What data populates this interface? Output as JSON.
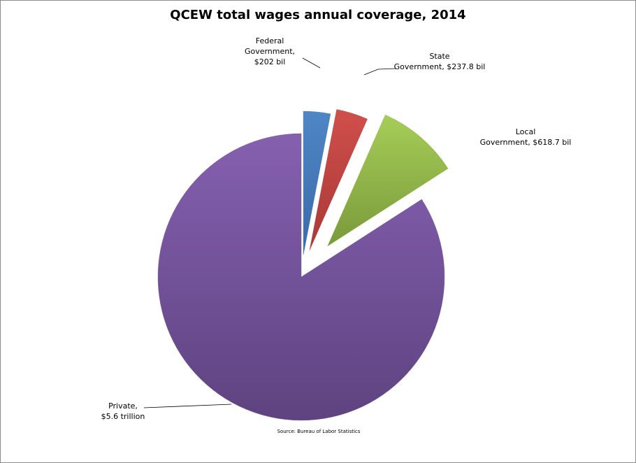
{
  "chart_data": {
    "type": "pie",
    "title": "QCEW total wages annual coverage, 2014",
    "source": "Source: Bureau of Labor Statistics",
    "slices": [
      {
        "label_line1": "Federal",
        "label_line2": "Government,",
        "label_line3": "$202 bil",
        "value": 202,
        "color": "#4a7ebb"
      },
      {
        "label_line1": "State",
        "label_line2": "Government, $237.8 bil",
        "value": 237.8,
        "color": "#be4b48"
      },
      {
        "label_line1": "Local",
        "label_line2": "Government, $618.7 bil",
        "value": 618.7,
        "color": "#98b954"
      },
      {
        "label_line1": "Private,",
        "label_line2": "$5.6 trillion",
        "value": 5600,
        "color": "#7d60a0"
      }
    ]
  }
}
